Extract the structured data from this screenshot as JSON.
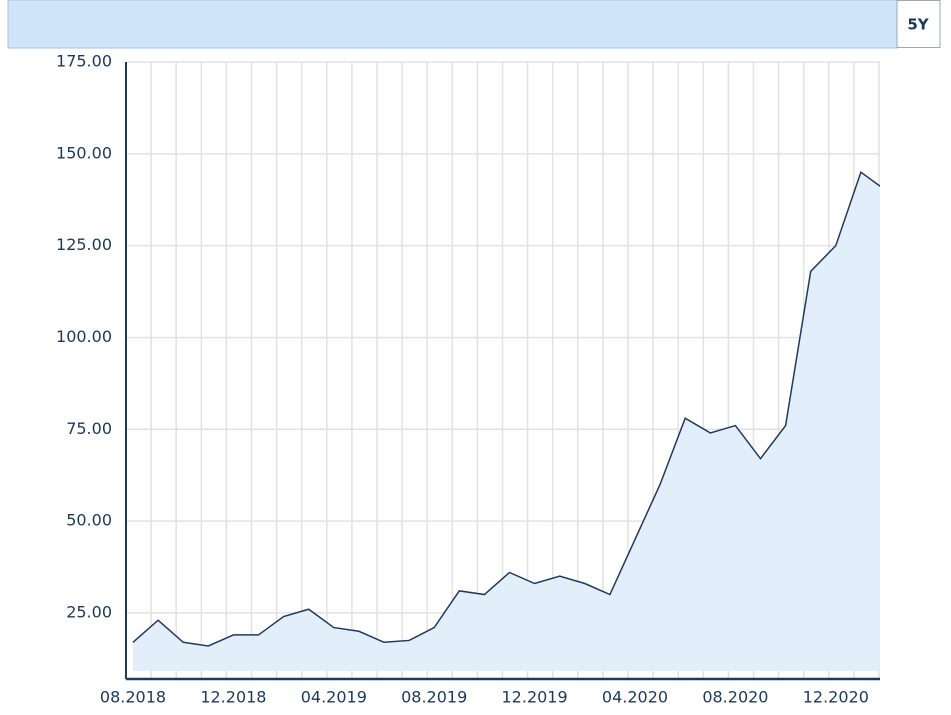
{
  "toolbar": {
    "range": "5Y"
  },
  "chart_data": {
    "type": "area",
    "categories": [
      "08.2018",
      null,
      null,
      null,
      "12.2018",
      null,
      null,
      null,
      "04.2019",
      null,
      null,
      null,
      "08.2019",
      null,
      null,
      null,
      "12.2019",
      null,
      null,
      null,
      "04.2020",
      null,
      null,
      null,
      "08.2020",
      null,
      null,
      null,
      "12.2020",
      null,
      null
    ],
    "series": [
      {
        "color": "#1f3a60",
        "fill": "#e2eefa",
        "values": [
          17,
          23,
          17,
          16,
          19,
          19,
          24,
          26,
          21,
          20,
          17,
          17.5,
          21,
          31,
          30,
          36,
          33,
          35,
          33,
          30,
          45,
          60,
          78,
          74,
          76,
          67,
          76,
          118,
          125,
          145,
          140
        ]
      }
    ],
    "ylim": [
      7,
      175
    ],
    "yticks": [
      {
        "value": 25,
        "label": "25.00"
      },
      {
        "value": 50,
        "label": "50.00"
      },
      {
        "value": 75,
        "label": "75.00"
      },
      {
        "value": 100,
        "label": "100.00"
      },
      {
        "value": 125,
        "label": "125.00"
      },
      {
        "value": 150,
        "label": "150.00"
      },
      {
        "value": 175,
        "label": "175.00"
      }
    ],
    "grid": true
  }
}
